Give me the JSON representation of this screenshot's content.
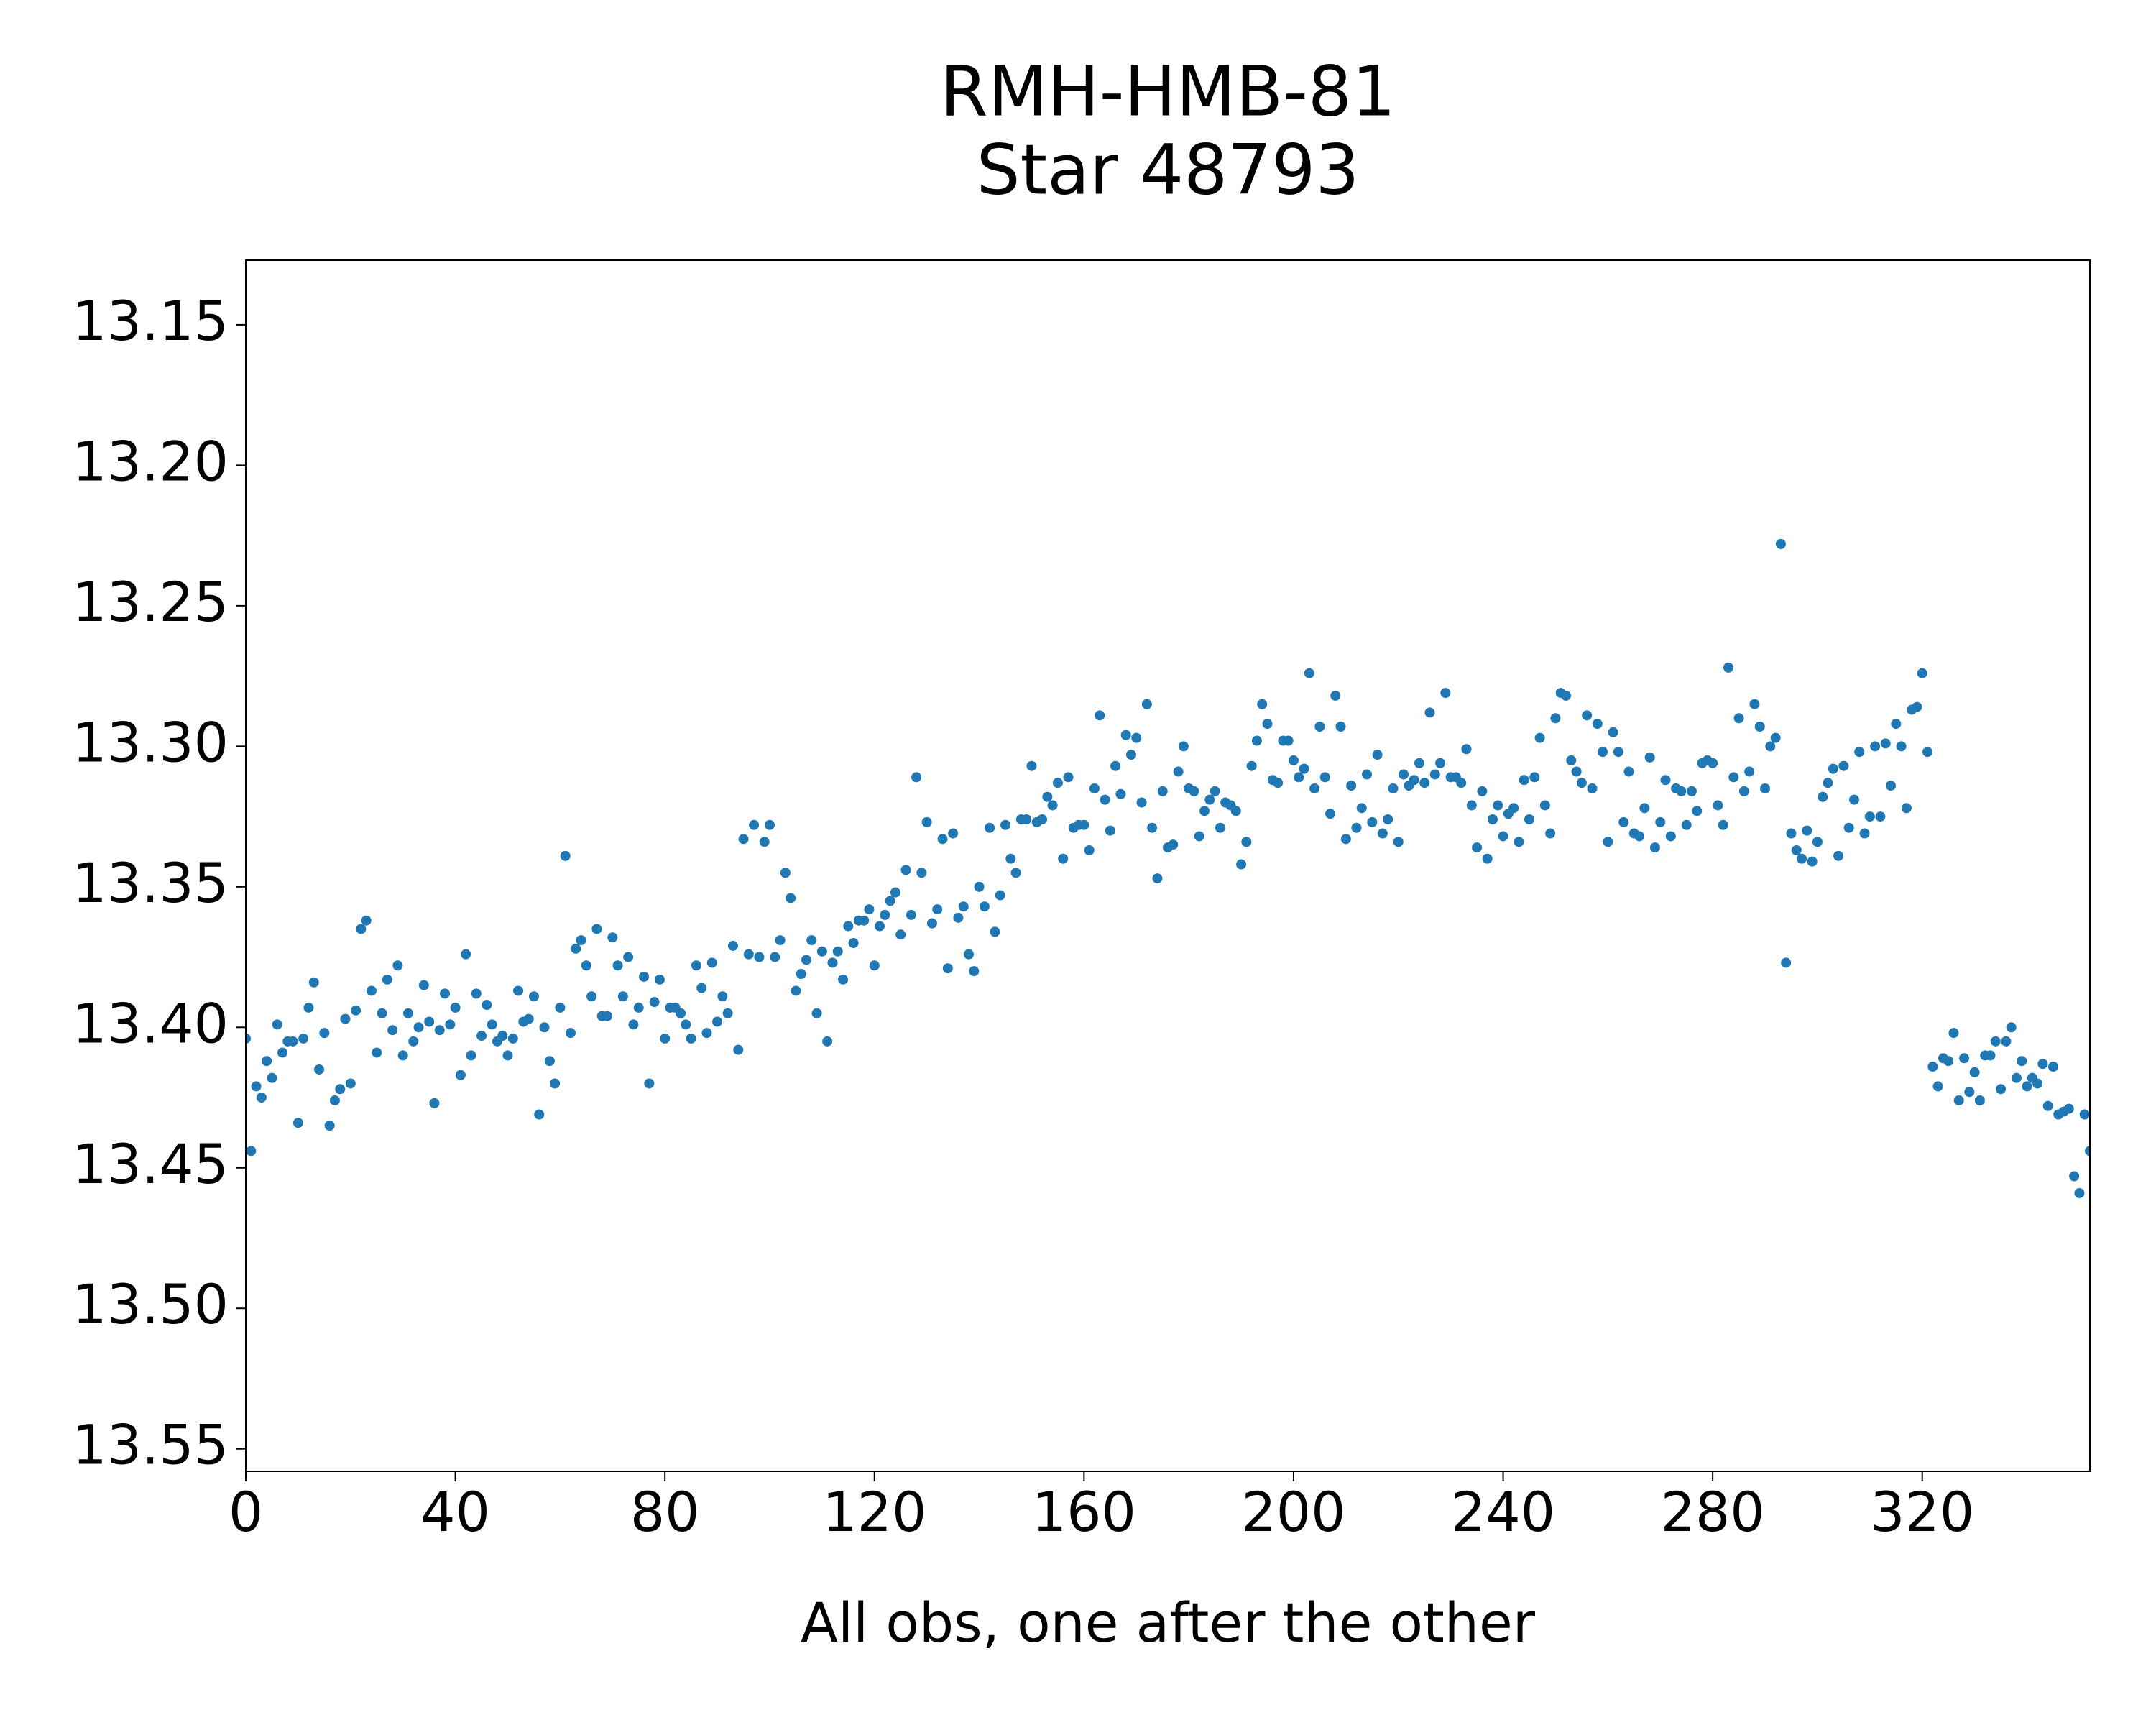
{
  "chart_data": {
    "type": "scatter",
    "title": "RMH-HMB-81",
    "subtitle": "Star 48793",
    "x_label": "All obs, one after the other",
    "color": "#1f77b4",
    "values": [
      13.404,
      13.444,
      13.421,
      13.425,
      13.412,
      13.418,
      13.399,
      13.409,
      13.405,
      13.405,
      13.434,
      13.404,
      13.393,
      13.384,
      13.415,
      13.402,
      13.435,
      13.426,
      13.422,
      13.397,
      13.42,
      13.394,
      13.365,
      13.362,
      13.387,
      13.409,
      13.395,
      13.383,
      13.401,
      13.378,
      13.41,
      13.395,
      13.405,
      13.4,
      13.385,
      13.398,
      13.427,
      13.401,
      13.388,
      13.399,
      13.393,
      13.417,
      13.374,
      13.41,
      13.388,
      13.403,
      13.392,
      13.399,
      13.405,
      13.403,
      13.41,
      13.404,
      13.387,
      13.398,
      13.397,
      13.389,
      13.431,
      13.4,
      13.412,
      13.42,
      13.393,
      13.339,
      13.402,
      13.372,
      13.369,
      13.378,
      13.389,
      13.365,
      13.396,
      13.396,
      13.368,
      13.378,
      13.389,
      13.375,
      13.399,
      13.393,
      13.382,
      13.42,
      13.391,
      13.383,
      13.404,
      13.393,
      13.393,
      13.395,
      13.399,
      13.404,
      13.378,
      13.386,
      13.402,
      13.377,
      13.398,
      13.389,
      13.395,
      13.371,
      13.408,
      13.333,
      13.374,
      13.328,
      13.375,
      13.334,
      13.328,
      13.375,
      13.369,
      13.345,
      13.354,
      13.387,
      13.381,
      13.376,
      13.369,
      13.395,
      13.373,
      13.405,
      13.377,
      13.373,
      13.383,
      13.364,
      13.37,
      13.362,
      13.362,
      13.358,
      13.378,
      13.364,
      13.36,
      13.355,
      13.352,
      13.367,
      13.344,
      13.36,
      13.311,
      13.345,
      13.327,
      13.363,
      13.358,
      13.333,
      13.379,
      13.331,
      13.361,
      13.357,
      13.374,
      13.38,
      13.35,
      13.357,
      13.329,
      13.366,
      13.353,
      13.328,
      13.34,
      13.345,
      13.326,
      13.326,
      13.307,
      13.327,
      13.326,
      13.318,
      13.321,
      13.313,
      13.34,
      13.311,
      13.329,
      13.328,
      13.328,
      13.337,
      13.315,
      13.289,
      13.319,
      13.33,
      13.307,
      13.317,
      13.296,
      13.303,
      13.297,
      13.32,
      13.285,
      13.329,
      13.347,
      13.316,
      13.336,
      13.335,
      13.309,
      13.3,
      13.315,
      13.316,
      13.332,
      13.323,
      13.319,
      13.316,
      13.329,
      13.32,
      13.321,
      13.323,
      13.342,
      13.334,
      13.307,
      13.298,
      13.285,
      13.292,
      13.312,
      13.313,
      13.298,
      13.298,
      13.305,
      13.311,
      13.308,
      13.274,
      13.315,
      13.293,
      13.311,
      13.324,
      13.282,
      13.293,
      13.333,
      13.314,
      13.329,
      13.322,
      13.31,
      13.327,
      13.303,
      13.331,
      13.326,
      13.315,
      13.334,
      13.31,
      13.314,
      13.312,
      13.306,
      13.313,
      13.288,
      13.31,
      13.306,
      13.281,
      13.311,
      13.311,
      13.313,
      13.301,
      13.321,
      13.336,
      13.316,
      13.34,
      13.326,
      13.321,
      13.332,
      13.324,
      13.322,
      13.334,
      13.312,
      13.326,
      13.311,
      13.297,
      13.321,
      13.331,
      13.29,
      13.281,
      13.282,
      13.305,
      13.309,
      13.313,
      13.289,
      13.315,
      13.292,
      13.302,
      13.334,
      13.295,
      13.302,
      13.327,
      13.309,
      13.331,
      13.332,
      13.322,
      13.304,
      13.336,
      13.327,
      13.312,
      13.332,
      13.315,
      13.316,
      13.328,
      13.316,
      13.323,
      13.306,
      13.305,
      13.306,
      13.321,
      13.328,
      13.272,
      13.311,
      13.29,
      13.316,
      13.309,
      13.285,
      13.293,
      13.315,
      13.3,
      13.297,
      13.228,
      13.377,
      13.331,
      13.337,
      13.34,
      13.33,
      13.341,
      13.334,
      13.318,
      13.313,
      13.308,
      13.339,
      13.307,
      13.329,
      13.319,
      13.302,
      13.331,
      13.325,
      13.3,
      13.325,
      13.299,
      13.314,
      13.292,
      13.3,
      13.322,
      13.287,
      13.286,
      13.274,
      13.302,
      13.414,
      13.421,
      13.411,
      13.412,
      13.402,
      13.426,
      13.411,
      13.423,
      13.416,
      13.426,
      13.41,
      13.41,
      13.405,
      13.422,
      13.405,
      13.4,
      13.418,
      13.412,
      13.421,
      13.418,
      13.42,
      13.413,
      13.428,
      13.414,
      13.431,
      13.43,
      13.429,
      13.453,
      13.459,
      13.431,
      13.444
    ],
    "xlim": [
      0,
      352
    ],
    "xticks": [
      0,
      40,
      80,
      120,
      160,
      200,
      240,
      280,
      320
    ],
    "ylim": [
      13.558,
      13.127
    ],
    "yticks": [
      13.15,
      {
        "value": 13.2,
        "label": "13.20"
      },
      13.25,
      {
        "value": 13.3,
        "label": "13.30"
      },
      13.35,
      {
        "value": 13.4,
        "label": "13.40"
      },
      13.45,
      {
        "value": 13.5,
        "label": "13.50"
      },
      13.55
    ],
    "grid": false
  }
}
